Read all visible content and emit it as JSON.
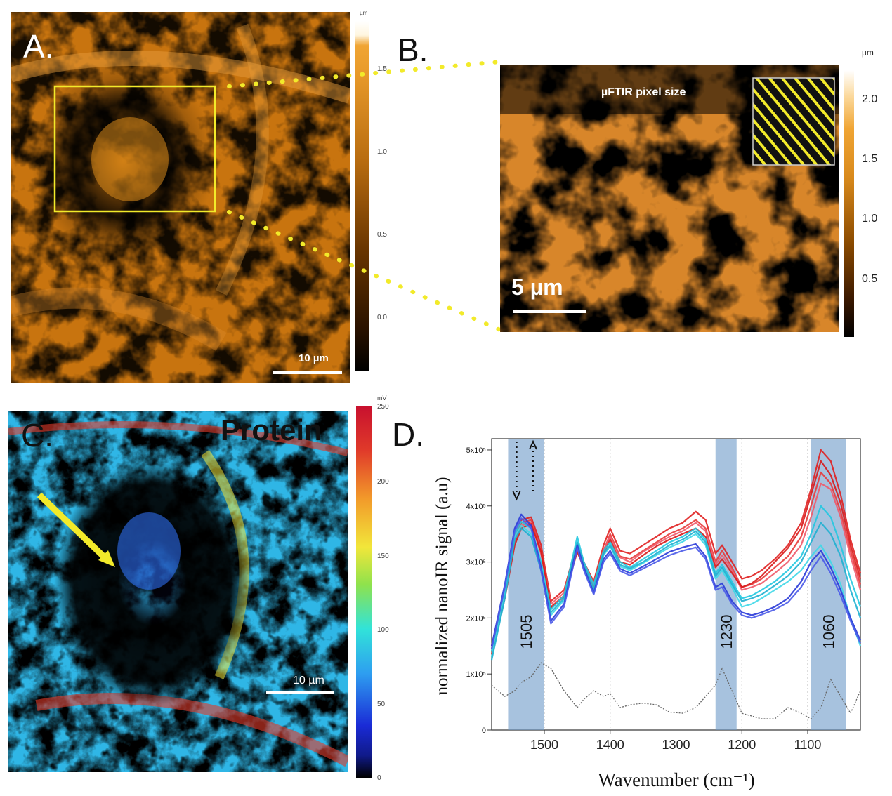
{
  "panel_a": {
    "letter": "A.",
    "scalebar_label": "10 µm",
    "colorbar": {
      "unit": "µm",
      "ticks": [
        "1.5",
        "1.0",
        "0.5",
        "0.0"
      ],
      "colors": [
        "#000000",
        "#3a1a00",
        "#8a4a00",
        "#d98a1c",
        "#f0a534",
        "#fff6e0"
      ]
    }
  },
  "panel_b": {
    "letter": "B.",
    "label": "µFTIR pixel size",
    "scalebar_label": "5 µm",
    "colorbar": {
      "unit": "µm",
      "ticks": [
        "2.0",
        "1.5",
        "1.0",
        "0.5"
      ]
    },
    "accent": "#f2ea2a"
  },
  "panel_c": {
    "letter": "C.",
    "title": "Protein",
    "scalebar_label": "10 µm",
    "colorbar": {
      "unit": "mV",
      "ticks": [
        "250",
        "200",
        "150",
        "100",
        "50",
        "0"
      ],
      "colors": [
        "#000000",
        "#1a2bd6",
        "#2e9ef0",
        "#31e3d9",
        "#8fe24c",
        "#f2e63a",
        "#f29a2a",
        "#e03a2a",
        "#c8102e"
      ]
    }
  },
  "panel_d": {
    "letter": "D.",
    "chart_data": {
      "type": "line",
      "xlabel": "Wavenumber (cm⁻¹)",
      "ylabel": "normalized nanoIR signal (a.u)",
      "xlim": [
        1580,
        1020
      ],
      "x_ticks": [
        "1500",
        "1400",
        "1300",
        "1200",
        "1100"
      ],
      "y_ticks": [
        "0",
        "1x10⁵",
        "2x10⁵",
        "3x10⁵",
        "4x10⁵",
        "5x10⁵"
      ],
      "ylim": [
        0,
        520000
      ],
      "highlight_bands": [
        {
          "label": "1505",
          "from": 1555,
          "to": 1500
        },
        {
          "label": "1230",
          "from": 1240,
          "to": 1208
        },
        {
          "label": "1060",
          "from": 1095,
          "to": 1042
        }
      ],
      "x": [
        1580,
        1560,
        1545,
        1535,
        1520,
        1505,
        1490,
        1470,
        1450,
        1440,
        1425,
        1410,
        1400,
        1385,
        1370,
        1350,
        1330,
        1310,
        1290,
        1270,
        1255,
        1240,
        1230,
        1215,
        1200,
        1185,
        1170,
        1150,
        1130,
        1110,
        1095,
        1080,
        1065,
        1050,
        1035,
        1020
      ],
      "series": [
        {
          "color": "#e02020",
          "values": [
            150000,
            250000,
            345000,
            375000,
            380000,
            330000,
            230000,
            250000,
            335000,
            300000,
            265000,
            330000,
            360000,
            320000,
            315000,
            330000,
            345000,
            360000,
            370000,
            390000,
            375000,
            315000,
            330000,
            300000,
            270000,
            275000,
            285000,
            305000,
            330000,
            370000,
            430000,
            500000,
            480000,
            420000,
            340000,
            280000
          ]
        },
        {
          "color": "#e83a3a",
          "values": [
            140000,
            240000,
            335000,
            370000,
            375000,
            320000,
            220000,
            240000,
            320000,
            295000,
            255000,
            320000,
            350000,
            310000,
            305000,
            320000,
            335000,
            350000,
            360000,
            375000,
            360000,
            300000,
            320000,
            290000,
            255000,
            260000,
            270000,
            290000,
            310000,
            345000,
            400000,
            460000,
            440000,
            390000,
            320000,
            260000
          ]
        },
        {
          "color": "#ef5a6a",
          "values": [
            145000,
            245000,
            340000,
            365000,
            370000,
            315000,
            225000,
            245000,
            325000,
            298000,
            258000,
            322000,
            345000,
            308000,
            300000,
            318000,
            332000,
            345000,
            355000,
            370000,
            355000,
            295000,
            312000,
            285000,
            250000,
            255000,
            262000,
            280000,
            300000,
            330000,
            380000,
            440000,
            430000,
            380000,
            310000,
            250000
          ]
        },
        {
          "color": "#d81a1a",
          "values": [
            135000,
            235000,
            330000,
            360000,
            368000,
            318000,
            218000,
            238000,
            318000,
            290000,
            250000,
            315000,
            340000,
            300000,
            295000,
            312000,
            328000,
            340000,
            350000,
            360000,
            345000,
            290000,
            305000,
            280000,
            255000,
            262000,
            275000,
            300000,
            325000,
            360000,
            420000,
            480000,
            455000,
            405000,
            330000,
            270000
          ]
        },
        {
          "color": "#22c8e0",
          "values": [
            140000,
            250000,
            350000,
            372000,
            360000,
            300000,
            215000,
            240000,
            345000,
            300000,
            260000,
            320000,
            335000,
            300000,
            290000,
            305000,
            320000,
            335000,
            345000,
            360000,
            340000,
            280000,
            295000,
            265000,
            235000,
            240000,
            250000,
            265000,
            285000,
            310000,
            350000,
            400000,
            380000,
            330000,
            270000,
            220000
          ]
        },
        {
          "color": "#3fd8e8",
          "values": [
            130000,
            240000,
            345000,
            365000,
            350000,
            290000,
            205000,
            232000,
            338000,
            292000,
            250000,
            312000,
            328000,
            292000,
            285000,
            298000,
            312000,
            326000,
            336000,
            350000,
            330000,
            270000,
            285000,
            255000,
            220000,
            225000,
            235000,
            250000,
            265000,
            285000,
            310000,
            330000,
            300000,
            260000,
            200000,
            150000
          ]
        },
        {
          "color": "#1fb0d0",
          "values": [
            125000,
            235000,
            340000,
            360000,
            345000,
            285000,
            210000,
            235000,
            335000,
            295000,
            252000,
            315000,
            330000,
            295000,
            288000,
            300000,
            315000,
            330000,
            340000,
            355000,
            335000,
            275000,
            290000,
            260000,
            230000,
            235000,
            242000,
            258000,
            275000,
            300000,
            335000,
            370000,
            350000,
            310000,
            250000,
            200000
          ]
        },
        {
          "color": "#2a3ad8",
          "values": [
            150000,
            260000,
            360000,
            385000,
            365000,
            290000,
            195000,
            225000,
            330000,
            290000,
            245000,
            305000,
            320000,
            288000,
            280000,
            292000,
            305000,
            318000,
            326000,
            332000,
            310000,
            255000,
            262000,
            230000,
            210000,
            205000,
            210000,
            220000,
            235000,
            265000,
            300000,
            320000,
            290000,
            250000,
            200000,
            160000
          ]
        },
        {
          "color": "#4a5ae8",
          "values": [
            145000,
            255000,
            355000,
            378000,
            360000,
            285000,
            190000,
            220000,
            325000,
            285000,
            242000,
            300000,
            315000,
            284000,
            276000,
            288000,
            300000,
            312000,
            320000,
            326000,
            305000,
            250000,
            255000,
            225000,
            205000,
            200000,
            206000,
            215000,
            228000,
            255000,
            285000,
            310000,
            280000,
            240000,
            195000,
            155000
          ]
        }
      ],
      "reference_trace": {
        "color": "#666666",
        "values": [
          80000,
          60000,
          70000,
          85000,
          95000,
          120000,
          110000,
          70000,
          40000,
          55000,
          70000,
          60000,
          65000,
          40000,
          45000,
          48000,
          45000,
          32000,
          30000,
          40000,
          60000,
          80000,
          110000,
          70000,
          30000,
          25000,
          20000,
          20000,
          40000,
          30000,
          20000,
          40000,
          90000,
          60000,
          30000,
          70000
        ]
      }
    }
  }
}
